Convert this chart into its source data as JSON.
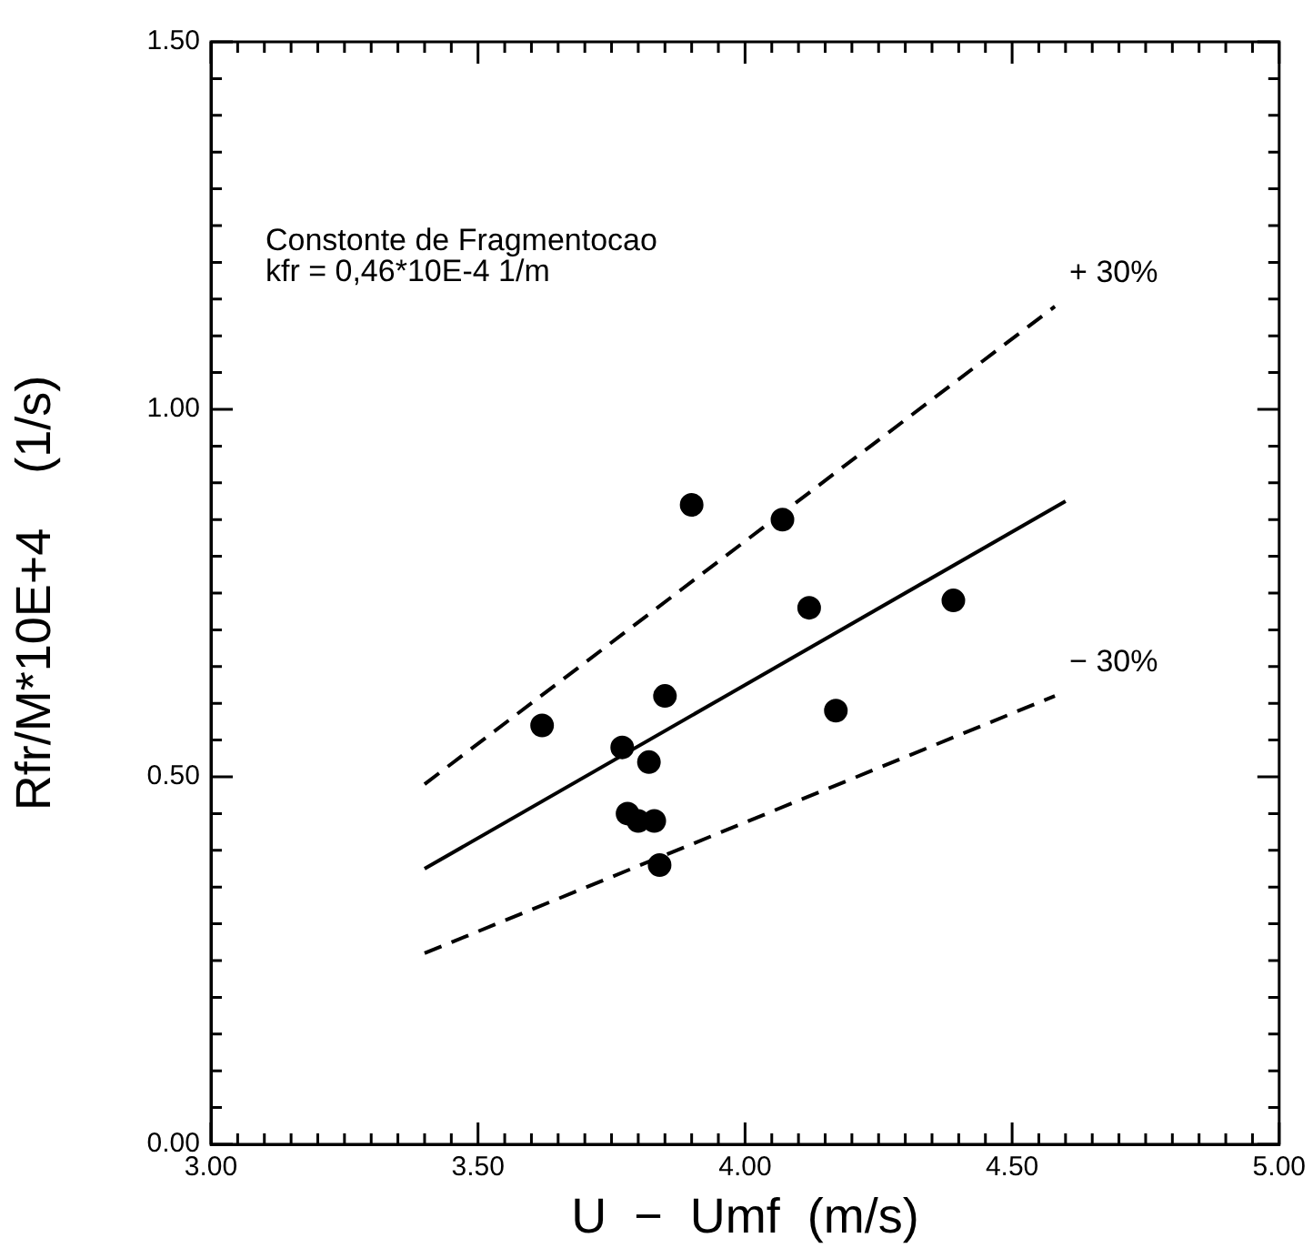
{
  "chart_data": {
    "type": "scatter",
    "xlabel": "U  −  Umf  (m/s)",
    "ylabel": "Rfr/M*10E+4    (1/s)",
    "xlim": [
      3.0,
      5.0
    ],
    "xticks": [
      {
        "value": 3.0,
        "label": "3.00"
      },
      {
        "value": 3.05,
        "label": null
      },
      {
        "value": 3.1,
        "label": null
      },
      {
        "value": 3.15,
        "label": null
      },
      {
        "value": 3.2,
        "label": null
      },
      {
        "value": 3.25,
        "label": null
      },
      {
        "value": 3.3,
        "label": null
      },
      {
        "value": 3.35,
        "label": null
      },
      {
        "value": 3.4,
        "label": null
      },
      {
        "value": 3.45,
        "label": null
      },
      {
        "value": 3.5,
        "label": "3.50"
      },
      {
        "value": 3.55,
        "label": null
      },
      {
        "value": 3.6,
        "label": null
      },
      {
        "value": 3.65,
        "label": null
      },
      {
        "value": 3.7,
        "label": null
      },
      {
        "value": 3.75,
        "label": null
      },
      {
        "value": 3.8,
        "label": null
      },
      {
        "value": 3.85,
        "label": null
      },
      {
        "value": 3.9,
        "label": null
      },
      {
        "value": 3.95,
        "label": null
      },
      {
        "value": 4.0,
        "label": "4.00"
      },
      {
        "value": 4.05,
        "label": null
      },
      {
        "value": 4.1,
        "label": null
      },
      {
        "value": 4.15,
        "label": null
      },
      {
        "value": 4.2,
        "label": null
      },
      {
        "value": 4.25,
        "label": null
      },
      {
        "value": 4.3,
        "label": null
      },
      {
        "value": 4.35,
        "label": null
      },
      {
        "value": 4.4,
        "label": null
      },
      {
        "value": 4.45,
        "label": null
      },
      {
        "value": 4.5,
        "label": "4.50"
      },
      {
        "value": 4.55,
        "label": null
      },
      {
        "value": 4.6,
        "label": null
      },
      {
        "value": 4.65,
        "label": null
      },
      {
        "value": 4.7,
        "label": null
      },
      {
        "value": 4.75,
        "label": null
      },
      {
        "value": 4.8,
        "label": null
      },
      {
        "value": 4.85,
        "label": null
      },
      {
        "value": 4.9,
        "label": null
      },
      {
        "value": 4.95,
        "label": null
      },
      {
        "value": 5.0,
        "label": "5.00"
      }
    ],
    "ylim": [
      0.0,
      1.5
    ],
    "yticks": [
      {
        "value": 0.0,
        "label": "0.00"
      },
      {
        "value": 0.05,
        "label": null
      },
      {
        "value": 0.1,
        "label": null
      },
      {
        "value": 0.15,
        "label": null
      },
      {
        "value": 0.2,
        "label": null
      },
      {
        "value": 0.25,
        "label": null
      },
      {
        "value": 0.3,
        "label": null
      },
      {
        "value": 0.35,
        "label": null
      },
      {
        "value": 0.4,
        "label": null
      },
      {
        "value": 0.45,
        "label": null
      },
      {
        "value": 0.5,
        "label": "0.50"
      },
      {
        "value": 0.55,
        "label": null
      },
      {
        "value": 0.6,
        "label": null
      },
      {
        "value": 0.65,
        "label": null
      },
      {
        "value": 0.7,
        "label": null
      },
      {
        "value": 0.75,
        "label": null
      },
      {
        "value": 0.8,
        "label": null
      },
      {
        "value": 0.85,
        "label": null
      },
      {
        "value": 0.9,
        "label": null
      },
      {
        "value": 0.95,
        "label": null
      },
      {
        "value": 1.0,
        "label": "1.00"
      },
      {
        "value": 1.05,
        "label": null
      },
      {
        "value": 1.1,
        "label": null
      },
      {
        "value": 1.15,
        "label": null
      },
      {
        "value": 1.2,
        "label": null
      },
      {
        "value": 1.25,
        "label": null
      },
      {
        "value": 1.3,
        "label": null
      },
      {
        "value": 1.35,
        "label": null
      },
      {
        "value": 1.4,
        "label": null
      },
      {
        "value": 1.45,
        "label": null
      },
      {
        "value": 1.5,
        "label": "1.50"
      }
    ],
    "legend": false,
    "series": [
      {
        "color": "#000000",
        "marker": "circle",
        "x": [
          3.62,
          3.77,
          3.82,
          3.85,
          3.78,
          3.8,
          3.83,
          3.84,
          4.12,
          4.17,
          4.39,
          3.9,
          4.07
        ],
        "values": [
          0.57,
          0.54,
          0.52,
          0.61,
          0.45,
          0.44,
          0.44,
          0.38,
          0.73,
          0.59,
          0.74,
          0.87,
          0.85
        ]
      },
      {
        "type": "line",
        "color": "#000000",
        "marker": "none",
        "line_style": "solid",
        "x": [
          3.4,
          4.6
        ],
        "values": [
          0.375,
          0.875
        ]
      },
      {
        "type": "line",
        "color": "#000000",
        "marker": "none",
        "line_style": "dashed",
        "x": [
          3.4,
          4.58
        ],
        "values": [
          0.49,
          1.14
        ]
      },
      {
        "type": "line",
        "color": "#000000",
        "marker": "none",
        "line_style": "dashed",
        "x": [
          3.4,
          4.58
        ],
        "values": [
          0.26,
          0.61
        ]
      }
    ],
    "annotations": [
      "Constonte de Fragmentocao\nkfr = 0,46*10E-4 1/m",
      {
        "text": "+ 30%",
        "x": 4.58,
        "y": 1.14
      },
      {
        "text": "− 30%",
        "x": 4.58,
        "y": 0.61
      }
    ]
  }
}
